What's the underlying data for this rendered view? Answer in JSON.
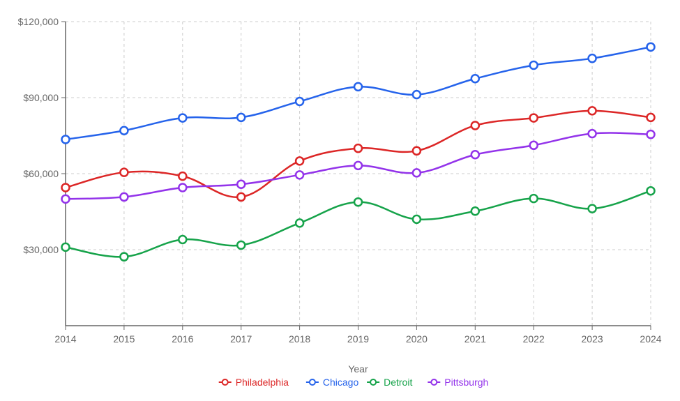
{
  "chart_data": {
    "type": "line",
    "title": "",
    "xlabel": "Year",
    "ylabel": "",
    "x": [
      "2014",
      "2015",
      "2016",
      "2017",
      "2018",
      "2019",
      "2020",
      "2021",
      "2022",
      "2023",
      "2024"
    ],
    "ylim": [
      0,
      120000
    ],
    "yticks": [
      30000,
      60000,
      90000,
      120000
    ],
    "ytick_labels": [
      "$30,000",
      "$60,000",
      "$90,000",
      "$120,000"
    ],
    "grid": true,
    "curve": "smooth",
    "legend_position": "bottom-center",
    "series": [
      {
        "name": "Philadelphia",
        "color": "#dc2626",
        "values": [
          54500,
          60500,
          59000,
          50800,
          65000,
          70000,
          69000,
          79000,
          82000,
          84800,
          82200
        ]
      },
      {
        "name": "Chicago",
        "color": "#2563eb",
        "values": [
          73500,
          77000,
          82000,
          82200,
          88500,
          94300,
          91200,
          97500,
          102800,
          105500,
          110000
        ]
      },
      {
        "name": "Detroit",
        "color": "#16a34a",
        "values": [
          31000,
          27200,
          34000,
          31800,
          40500,
          48800,
          42000,
          45200,
          50200,
          46200,
          53200
        ]
      },
      {
        "name": "Pittsburgh",
        "color": "#9333ea",
        "values": [
          50000,
          50800,
          54500,
          55800,
          59500,
          63200,
          60300,
          67500,
          71200,
          75800,
          75500
        ]
      }
    ]
  }
}
